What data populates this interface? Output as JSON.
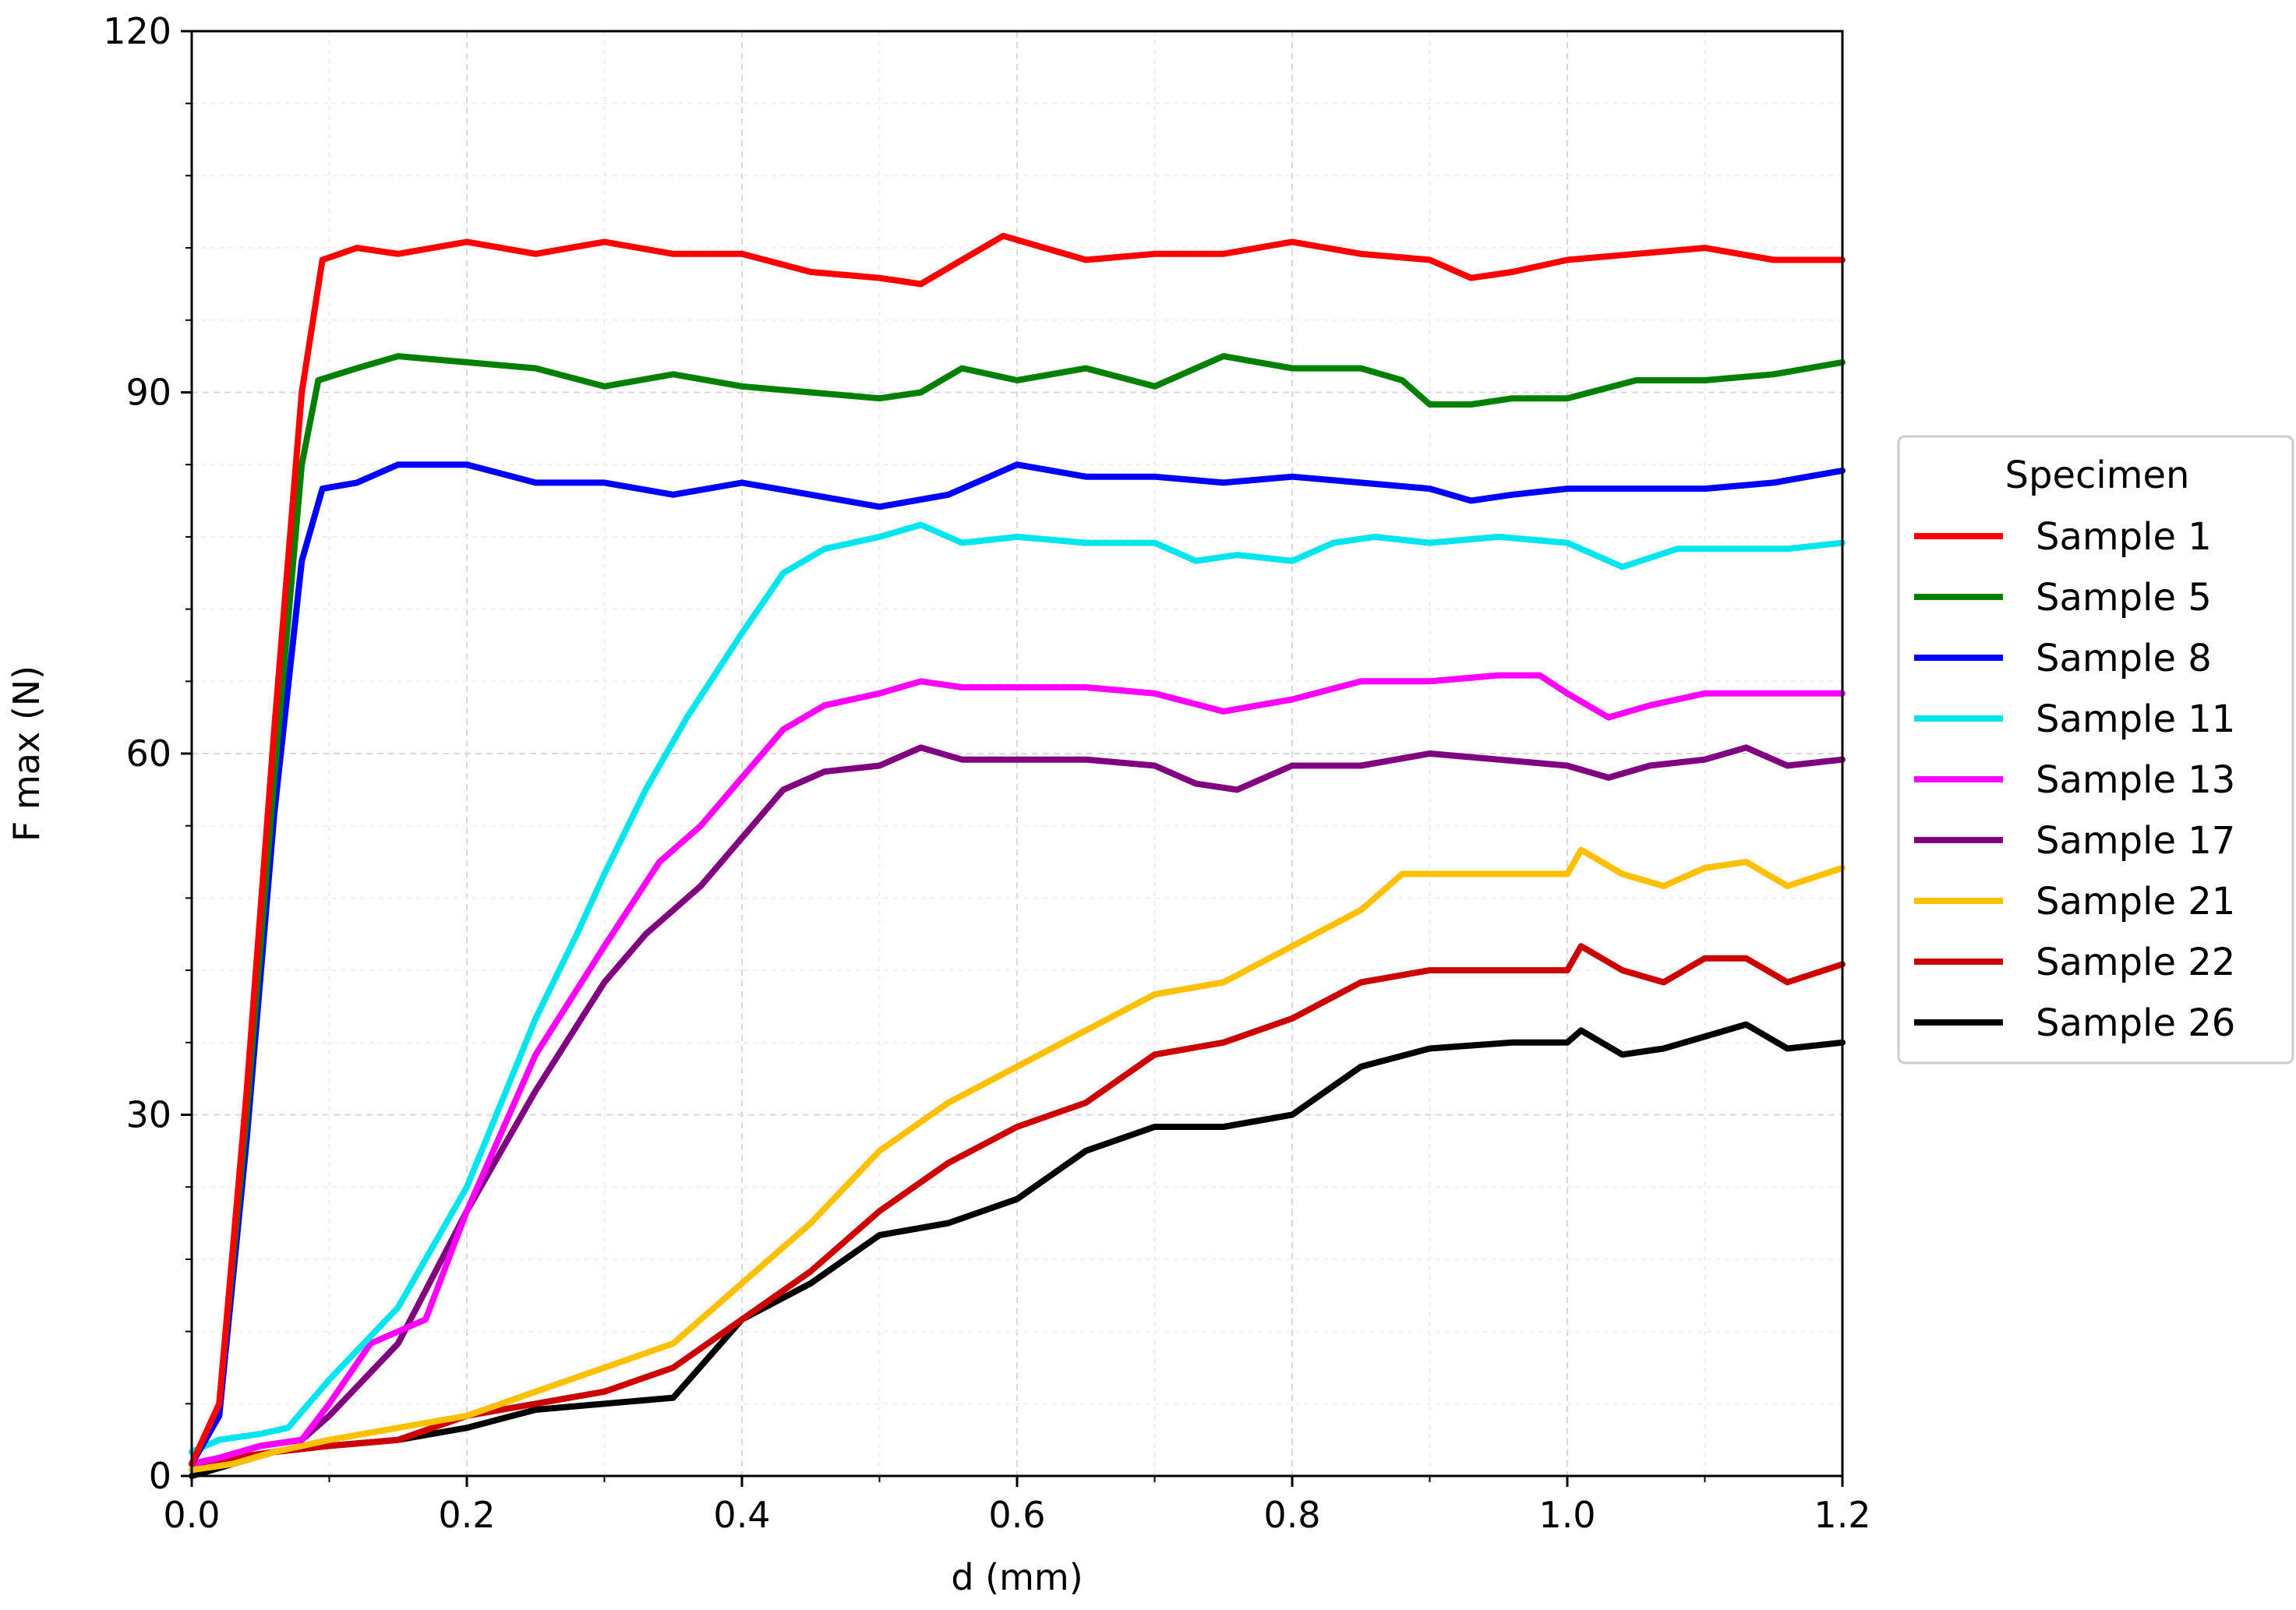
{
  "chart_data": {
    "type": "line",
    "title": "",
    "xlabel": "d (mm)",
    "ylabel": "F max (N)",
    "xlim": [
      0,
      1.2
    ],
    "ylim": [
      0,
      120
    ],
    "x_ticks": [
      "0.0",
      "0.2",
      "0.4",
      "0.6",
      "0.8",
      "1.0",
      "1.2"
    ],
    "y_ticks": [
      "0",
      "30",
      "60",
      "90",
      "120"
    ],
    "grid": true,
    "legend": {
      "title": "Specimen",
      "position": "right-outside"
    },
    "series": [
      {
        "name": "Sample 1",
        "color": "#ff0000",
        "points": [
          [
            0,
            1
          ],
          [
            0.02,
            6
          ],
          [
            0.04,
            32
          ],
          [
            0.06,
            62
          ],
          [
            0.08,
            90
          ],
          [
            0.095,
            101
          ],
          [
            0.12,
            102
          ],
          [
            0.15,
            101.5
          ],
          [
            0.2,
            102.5
          ],
          [
            0.25,
            101.5
          ],
          [
            0.3,
            102.5
          ],
          [
            0.35,
            101.5
          ],
          [
            0.4,
            101.5
          ],
          [
            0.45,
            100
          ],
          [
            0.5,
            99.5
          ],
          [
            0.53,
            99
          ],
          [
            0.56,
            101
          ],
          [
            0.59,
            103
          ],
          [
            0.62,
            102
          ],
          [
            0.65,
            101
          ],
          [
            0.7,
            101.5
          ],
          [
            0.75,
            101.5
          ],
          [
            0.8,
            102.5
          ],
          [
            0.85,
            101.5
          ],
          [
            0.9,
            101
          ],
          [
            0.93,
            99.5
          ],
          [
            0.96,
            100
          ],
          [
            1.0,
            101
          ],
          [
            1.05,
            101.5
          ],
          [
            1.1,
            102
          ],
          [
            1.15,
            101
          ],
          [
            1.2,
            101
          ]
        ]
      },
      {
        "name": "Sample 5",
        "color": "#008000",
        "points": [
          [
            0,
            1
          ],
          [
            0.02,
            6
          ],
          [
            0.04,
            30
          ],
          [
            0.06,
            58
          ],
          [
            0.08,
            84
          ],
          [
            0.092,
            91
          ],
          [
            0.12,
            92
          ],
          [
            0.15,
            93
          ],
          [
            0.2,
            92.5
          ],
          [
            0.25,
            92
          ],
          [
            0.3,
            90.5
          ],
          [
            0.35,
            91.5
          ],
          [
            0.4,
            90.5
          ],
          [
            0.45,
            90
          ],
          [
            0.5,
            89.5
          ],
          [
            0.53,
            90
          ],
          [
            0.56,
            92
          ],
          [
            0.6,
            91
          ],
          [
            0.65,
            92
          ],
          [
            0.7,
            90.5
          ],
          [
            0.75,
            93
          ],
          [
            0.8,
            92
          ],
          [
            0.85,
            92
          ],
          [
            0.88,
            91
          ],
          [
            0.9,
            89
          ],
          [
            0.93,
            89
          ],
          [
            0.96,
            89.5
          ],
          [
            1.0,
            89.5
          ],
          [
            1.05,
            91
          ],
          [
            1.1,
            91
          ],
          [
            1.15,
            91.5
          ],
          [
            1.2,
            92.5
          ]
        ]
      },
      {
        "name": "Sample 8",
        "color": "#0000ff",
        "points": [
          [
            0,
            1
          ],
          [
            0.02,
            5
          ],
          [
            0.04,
            28
          ],
          [
            0.06,
            55
          ],
          [
            0.08,
            76
          ],
          [
            0.095,
            82
          ],
          [
            0.12,
            82.5
          ],
          [
            0.15,
            84
          ],
          [
            0.2,
            84
          ],
          [
            0.25,
            82.5
          ],
          [
            0.3,
            82.5
          ],
          [
            0.35,
            81.5
          ],
          [
            0.4,
            82.5
          ],
          [
            0.45,
            81.5
          ],
          [
            0.5,
            80.5
          ],
          [
            0.55,
            81.5
          ],
          [
            0.6,
            84
          ],
          [
            0.65,
            83
          ],
          [
            0.7,
            83
          ],
          [
            0.75,
            82.5
          ],
          [
            0.8,
            83
          ],
          [
            0.85,
            82.5
          ],
          [
            0.9,
            82
          ],
          [
            0.93,
            81
          ],
          [
            0.96,
            81.5
          ],
          [
            1.0,
            82
          ],
          [
            1.05,
            82
          ],
          [
            1.1,
            82
          ],
          [
            1.15,
            82.5
          ],
          [
            1.2,
            83.5
          ]
        ]
      },
      {
        "name": "Sample 11",
        "color": "#00e5ee",
        "points": [
          [
            0,
            2
          ],
          [
            0.02,
            3
          ],
          [
            0.05,
            3.5
          ],
          [
            0.07,
            4
          ],
          [
            0.1,
            8
          ],
          [
            0.15,
            14
          ],
          [
            0.2,
            24
          ],
          [
            0.25,
            38
          ],
          [
            0.28,
            45
          ],
          [
            0.3,
            50
          ],
          [
            0.33,
            57
          ],
          [
            0.36,
            63
          ],
          [
            0.4,
            70
          ],
          [
            0.43,
            75
          ],
          [
            0.46,
            77
          ],
          [
            0.5,
            78
          ],
          [
            0.53,
            79
          ],
          [
            0.56,
            77.5
          ],
          [
            0.6,
            78
          ],
          [
            0.65,
            77.5
          ],
          [
            0.7,
            77.5
          ],
          [
            0.73,
            76
          ],
          [
            0.76,
            76.5
          ],
          [
            0.8,
            76
          ],
          [
            0.83,
            77.5
          ],
          [
            0.86,
            78
          ],
          [
            0.9,
            77.5
          ],
          [
            0.95,
            78
          ],
          [
            1.0,
            77.5
          ],
          [
            1.04,
            75.5
          ],
          [
            1.08,
            77
          ],
          [
            1.12,
            77
          ],
          [
            1.16,
            77
          ],
          [
            1.2,
            77.5
          ]
        ]
      },
      {
        "name": "Sample 13",
        "color": "#ff00ff",
        "points": [
          [
            0,
            1
          ],
          [
            0.02,
            1.5
          ],
          [
            0.05,
            2.5
          ],
          [
            0.08,
            3
          ],
          [
            0.1,
            6
          ],
          [
            0.13,
            11
          ],
          [
            0.17,
            13
          ],
          [
            0.2,
            22
          ],
          [
            0.25,
            35
          ],
          [
            0.3,
            44
          ],
          [
            0.34,
            51
          ],
          [
            0.37,
            54
          ],
          [
            0.4,
            58
          ],
          [
            0.43,
            62
          ],
          [
            0.46,
            64
          ],
          [
            0.5,
            65
          ],
          [
            0.53,
            66
          ],
          [
            0.56,
            65.5
          ],
          [
            0.6,
            65.5
          ],
          [
            0.65,
            65.5
          ],
          [
            0.7,
            65
          ],
          [
            0.75,
            63.5
          ],
          [
            0.8,
            64.5
          ],
          [
            0.85,
            66
          ],
          [
            0.9,
            66
          ],
          [
            0.95,
            66.5
          ],
          [
            0.98,
            66.5
          ],
          [
            1.0,
            65
          ],
          [
            1.03,
            63
          ],
          [
            1.06,
            64
          ],
          [
            1.1,
            65
          ],
          [
            1.15,
            65
          ],
          [
            1.2,
            65
          ]
        ]
      },
      {
        "name": "Sample 17",
        "color": "#800080",
        "points": [
          [
            0,
            1
          ],
          [
            0.02,
            1.5
          ],
          [
            0.05,
            2.5
          ],
          [
            0.08,
            3
          ],
          [
            0.1,
            5
          ],
          [
            0.15,
            11
          ],
          [
            0.2,
            22
          ],
          [
            0.25,
            32
          ],
          [
            0.3,
            41
          ],
          [
            0.33,
            45
          ],
          [
            0.37,
            49
          ],
          [
            0.4,
            53
          ],
          [
            0.43,
            57
          ],
          [
            0.46,
            58.5
          ],
          [
            0.5,
            59
          ],
          [
            0.53,
            60.5
          ],
          [
            0.56,
            59.5
          ],
          [
            0.6,
            59.5
          ],
          [
            0.65,
            59.5
          ],
          [
            0.7,
            59
          ],
          [
            0.73,
            57.5
          ],
          [
            0.76,
            57
          ],
          [
            0.8,
            59
          ],
          [
            0.85,
            59
          ],
          [
            0.9,
            60
          ],
          [
            0.95,
            59.5
          ],
          [
            1.0,
            59
          ],
          [
            1.03,
            58
          ],
          [
            1.06,
            59
          ],
          [
            1.1,
            59.5
          ],
          [
            1.13,
            60.5
          ],
          [
            1.16,
            59
          ],
          [
            1.2,
            59.5
          ]
        ]
      },
      {
        "name": "Sample 21",
        "color": "#ffc000",
        "points": [
          [
            0,
            0.5
          ],
          [
            0.03,
            1
          ],
          [
            0.06,
            2
          ],
          [
            0.1,
            3
          ],
          [
            0.15,
            4
          ],
          [
            0.2,
            5
          ],
          [
            0.25,
            7
          ],
          [
            0.3,
            9
          ],
          [
            0.35,
            11
          ],
          [
            0.4,
            16
          ],
          [
            0.45,
            21
          ],
          [
            0.5,
            27
          ],
          [
            0.55,
            31
          ],
          [
            0.6,
            34
          ],
          [
            0.65,
            37
          ],
          [
            0.7,
            40
          ],
          [
            0.75,
            41
          ],
          [
            0.8,
            44
          ],
          [
            0.85,
            47
          ],
          [
            0.88,
            50
          ],
          [
            0.92,
            50
          ],
          [
            0.96,
            50
          ],
          [
            1.0,
            50
          ],
          [
            1.01,
            52
          ],
          [
            1.04,
            50
          ],
          [
            1.07,
            49
          ],
          [
            1.1,
            50.5
          ],
          [
            1.13,
            51
          ],
          [
            1.16,
            49
          ],
          [
            1.2,
            50.5
          ]
        ]
      },
      {
        "name": "Sample 22",
        "color": "#cc0000",
        "points": [
          [
            0,
            1
          ],
          [
            0.03,
            1.5
          ],
          [
            0.06,
            2
          ],
          [
            0.1,
            2.5
          ],
          [
            0.15,
            3
          ],
          [
            0.2,
            5
          ],
          [
            0.25,
            6
          ],
          [
            0.3,
            7
          ],
          [
            0.35,
            9
          ],
          [
            0.4,
            13
          ],
          [
            0.45,
            17
          ],
          [
            0.5,
            22
          ],
          [
            0.55,
            26
          ],
          [
            0.6,
            29
          ],
          [
            0.65,
            31
          ],
          [
            0.7,
            35
          ],
          [
            0.75,
            36
          ],
          [
            0.8,
            38
          ],
          [
            0.85,
            41
          ],
          [
            0.9,
            42
          ],
          [
            0.96,
            42
          ],
          [
            1.0,
            42
          ],
          [
            1.01,
            44
          ],
          [
            1.04,
            42
          ],
          [
            1.07,
            41
          ],
          [
            1.1,
            43
          ],
          [
            1.13,
            43
          ],
          [
            1.16,
            41
          ],
          [
            1.2,
            42.5
          ]
        ]
      },
      {
        "name": "Sample 26",
        "color": "#000000",
        "points": [
          [
            0,
            0
          ],
          [
            0.03,
            1
          ],
          [
            0.06,
            2
          ],
          [
            0.1,
            2.5
          ],
          [
            0.15,
            3
          ],
          [
            0.2,
            4
          ],
          [
            0.25,
            5.5
          ],
          [
            0.3,
            6
          ],
          [
            0.35,
            6.5
          ],
          [
            0.4,
            13
          ],
          [
            0.45,
            16
          ],
          [
            0.5,
            20
          ],
          [
            0.55,
            21
          ],
          [
            0.6,
            23
          ],
          [
            0.65,
            27
          ],
          [
            0.7,
            29
          ],
          [
            0.75,
            29
          ],
          [
            0.8,
            30
          ],
          [
            0.85,
            34
          ],
          [
            0.9,
            35.5
          ],
          [
            0.96,
            36
          ],
          [
            1.0,
            36
          ],
          [
            1.01,
            37
          ],
          [
            1.04,
            35
          ],
          [
            1.07,
            35.5
          ],
          [
            1.1,
            36.5
          ],
          [
            1.13,
            37.5
          ],
          [
            1.16,
            35.5
          ],
          [
            1.2,
            36
          ]
        ]
      }
    ]
  }
}
